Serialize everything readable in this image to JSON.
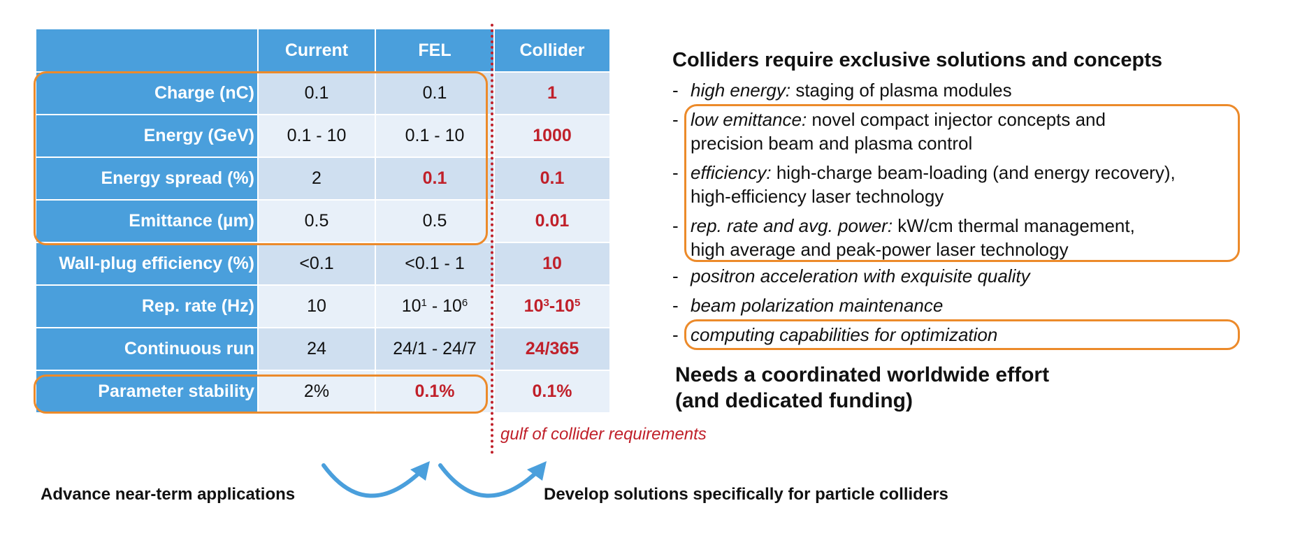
{
  "table": {
    "headers": [
      "",
      "Current",
      "FEL",
      "Collider"
    ],
    "rows": [
      {
        "label": "Charge (nC)",
        "current": "0.1",
        "fel": "0.1",
        "collider": "1"
      },
      {
        "label": "Energy (GeV)",
        "current": "0.1 - 10",
        "fel": "0.1 - 10",
        "collider": "1000"
      },
      {
        "label": "Energy spread (%)",
        "current": "2",
        "fel": "0.1",
        "collider": "0.1"
      },
      {
        "label": "Emittance (µm)",
        "current": "0.5",
        "fel": "0.5",
        "collider": "0.01"
      },
      {
        "label": "Wall-plug efficiency (%)",
        "current": "<0.1",
        "fel": "<0.1 - 1",
        "collider": "10"
      },
      {
        "label": "Rep. rate (Hz)",
        "current": "10",
        "fel_a": "10",
        "fel_a_exp": "1",
        "fel_sep": " - ",
        "fel_b": "10",
        "fel_b_exp": "6",
        "col_a": "10",
        "col_a_exp": "3",
        "col_sep": "-",
        "col_b": "10",
        "col_b_exp": "5"
      },
      {
        "label": "Continuous run",
        "current": "24",
        "fel": "24/1 - 24/7",
        "collider": "24/365"
      },
      {
        "label": "Parameter stability",
        "current": "2%",
        "fel": "0.1%",
        "collider": "0.1%"
      }
    ]
  },
  "gulf_label": "gulf of collider requirements",
  "captions": {
    "left": "Advance near-term applications",
    "right": "Develop solutions specifically for particle colliders"
  },
  "right_panel": {
    "title": "Colliders require exclusive solutions and concepts",
    "bullets": [
      {
        "lead": "high energy:",
        "rest": " staging of plasma modules"
      },
      {
        "lead": "low emittance:",
        "rest": " novel compact injector concepts and",
        "line2": "precision beam and plasma control"
      },
      {
        "lead": "efficiency:",
        "rest": " high-charge beam-loading (and energy recovery),",
        "line2": "high-efficiency laser technology"
      },
      {
        "lead": "rep. rate and avg. power:",
        "rest": " kW/cm thermal management,",
        "line2": "high average and peak-power laser technology"
      },
      {
        "lead": "positron acceleration with exquisite quality",
        "rest": ""
      },
      {
        "lead": "beam polarization maintenance",
        "rest": ""
      },
      {
        "lead": "computing capabilities for optimization",
        "rest": ""
      }
    ],
    "dash": "-",
    "needs_line1": "Needs a coordinated worldwide effort",
    "needs_line2": "(and dedicated funding)"
  },
  "colors": {
    "header_blue": "#4a9fdc",
    "highlight_orange": "#ec8a2a",
    "collider_red": "#c0202a"
  }
}
